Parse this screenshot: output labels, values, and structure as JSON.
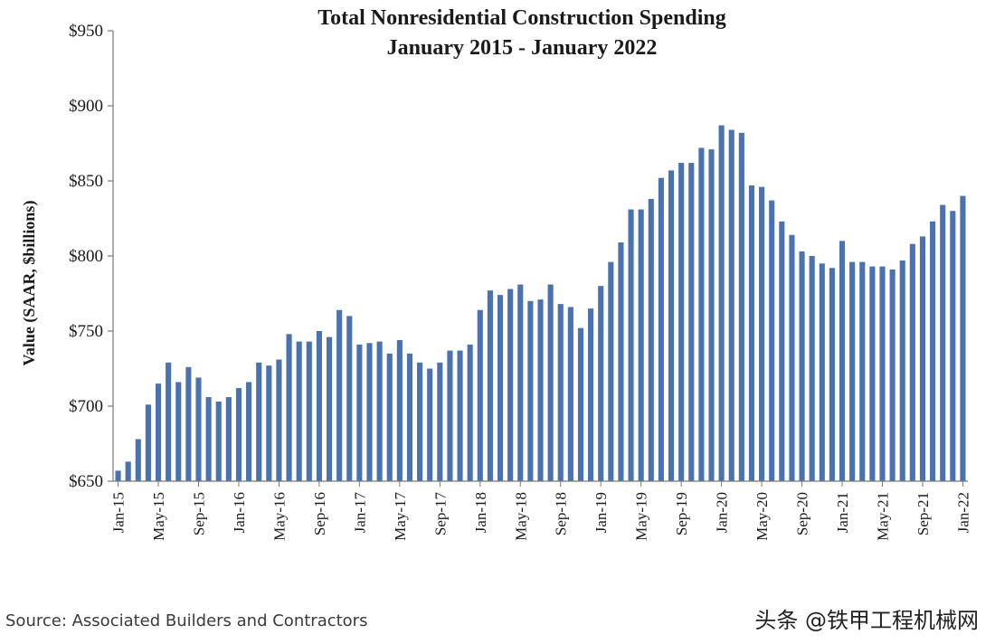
{
  "chart_data": {
    "type": "bar",
    "title": "Total Nonresidential Construction Spending",
    "subtitle": "January 2015 - January 2022",
    "xlabel": "",
    "ylabel": "Value (SAAR, $billions)",
    "ylim": [
      650,
      950
    ],
    "yticks": [
      "$650",
      "$700",
      "$750",
      "$800",
      "$850",
      "$900",
      "$950"
    ],
    "ytick_values": [
      650,
      700,
      750,
      800,
      850,
      900,
      950
    ],
    "grid": false,
    "legend": "none",
    "bar_color": "#4a72b0",
    "categories": [
      "Jan-15",
      "Feb-15",
      "Mar-15",
      "Apr-15",
      "May-15",
      "Jun-15",
      "Jul-15",
      "Aug-15",
      "Sep-15",
      "Oct-15",
      "Nov-15",
      "Dec-15",
      "Jan-16",
      "Feb-16",
      "Mar-16",
      "Apr-16",
      "May-16",
      "Jun-16",
      "Jul-16",
      "Aug-16",
      "Sep-16",
      "Oct-16",
      "Nov-16",
      "Dec-16",
      "Jan-17",
      "Feb-17",
      "Mar-17",
      "Apr-17",
      "May-17",
      "Jun-17",
      "Jul-17",
      "Aug-17",
      "Sep-17",
      "Oct-17",
      "Nov-17",
      "Dec-17",
      "Jan-18",
      "Feb-18",
      "Mar-18",
      "Apr-18",
      "May-18",
      "Jun-18",
      "Jul-18",
      "Aug-18",
      "Sep-18",
      "Oct-18",
      "Nov-18",
      "Dec-18",
      "Jan-19",
      "Feb-19",
      "Mar-19",
      "Apr-19",
      "May-19",
      "Jun-19",
      "Jul-19",
      "Aug-19",
      "Sep-19",
      "Oct-19",
      "Nov-19",
      "Dec-19",
      "Jan-20",
      "Feb-20",
      "Mar-20",
      "Apr-20",
      "May-20",
      "Jun-20",
      "Jul-20",
      "Aug-20",
      "Sep-20",
      "Oct-20",
      "Nov-20",
      "Dec-20",
      "Jan-21",
      "Feb-21",
      "Mar-21",
      "Apr-21",
      "May-21",
      "Jun-21",
      "Jul-21",
      "Aug-21",
      "Sep-21",
      "Oct-21",
      "Nov-21",
      "Dec-21",
      "Jan-22"
    ],
    "x_tick_labels": [
      "Jan-15",
      "May-15",
      "Sep-15",
      "Jan-16",
      "May-16",
      "Sep-16",
      "Jan-17",
      "May-17",
      "Sep-17",
      "Jan-18",
      "May-18",
      "Sep-18",
      "Jan-19",
      "May-19",
      "Sep-19",
      "Jan-20",
      "May-20",
      "Sep-20",
      "Jan-21",
      "May-21",
      "Sep-21",
      "Jan-22"
    ],
    "values": [
      657,
      663,
      678,
      701,
      715,
      729,
      716,
      726,
      719,
      706,
      703,
      706,
      712,
      716,
      729,
      727,
      731,
      748,
      743,
      743,
      750,
      746,
      764,
      760,
      741,
      742,
      743,
      735,
      744,
      735,
      729,
      725,
      729,
      737,
      737,
      741,
      764,
      777,
      774,
      778,
      781,
      770,
      771,
      781,
      768,
      766,
      752,
      765,
      780,
      796,
      809,
      831,
      831,
      838,
      852,
      857,
      862,
      862,
      872,
      871,
      887,
      884,
      882,
      847,
      846,
      837,
      823,
      814,
      803,
      800,
      795,
      792,
      810,
      796,
      796,
      793,
      793,
      791,
      797,
      808,
      813,
      823,
      834,
      830,
      840
    ]
  },
  "source": "Source: Associated Builders and Contractors",
  "watermark": "头条 @铁甲工程机械网"
}
